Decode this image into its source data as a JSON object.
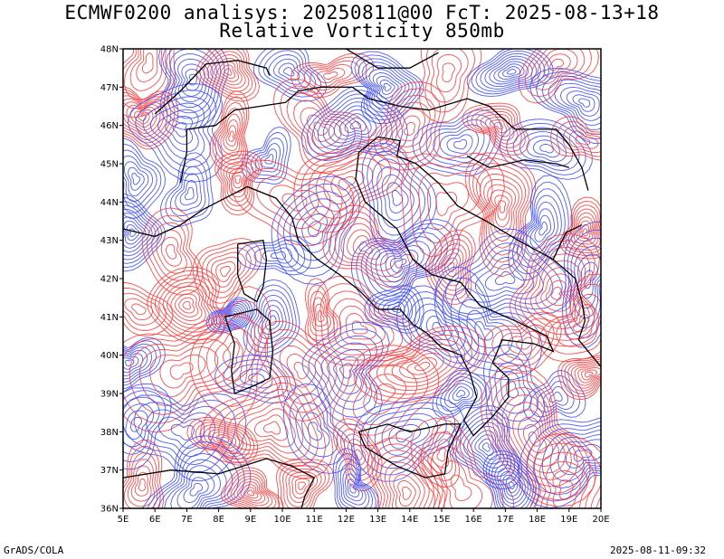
{
  "title": {
    "line1": "ECMWF0200 analisys: 20250811@00 FcT: 2025-08-13+18",
    "line2": "Relative Vorticity 850mb"
  },
  "axes": {
    "x_labels": [
      "5E",
      "6E",
      "7E",
      "8E",
      "9E",
      "10E",
      "11E",
      "12E",
      "13E",
      "14E",
      "15E",
      "16E",
      "17E",
      "18E",
      "19E",
      "20E"
    ],
    "y_labels": [
      "36N",
      "37N",
      "38N",
      "39N",
      "40N",
      "41N",
      "42N",
      "43N",
      "44N",
      "45N",
      "46N",
      "47N",
      "48N"
    ],
    "lon_range": [
      5,
      20
    ],
    "lat_range": [
      36,
      48
    ]
  },
  "colors": {
    "positive": "#ff3b3b",
    "negative": "#3b4bff",
    "coast": "#000000"
  },
  "footer": {
    "left": "GrADS/COLA",
    "right": "2025-08-11-09:32"
  }
}
